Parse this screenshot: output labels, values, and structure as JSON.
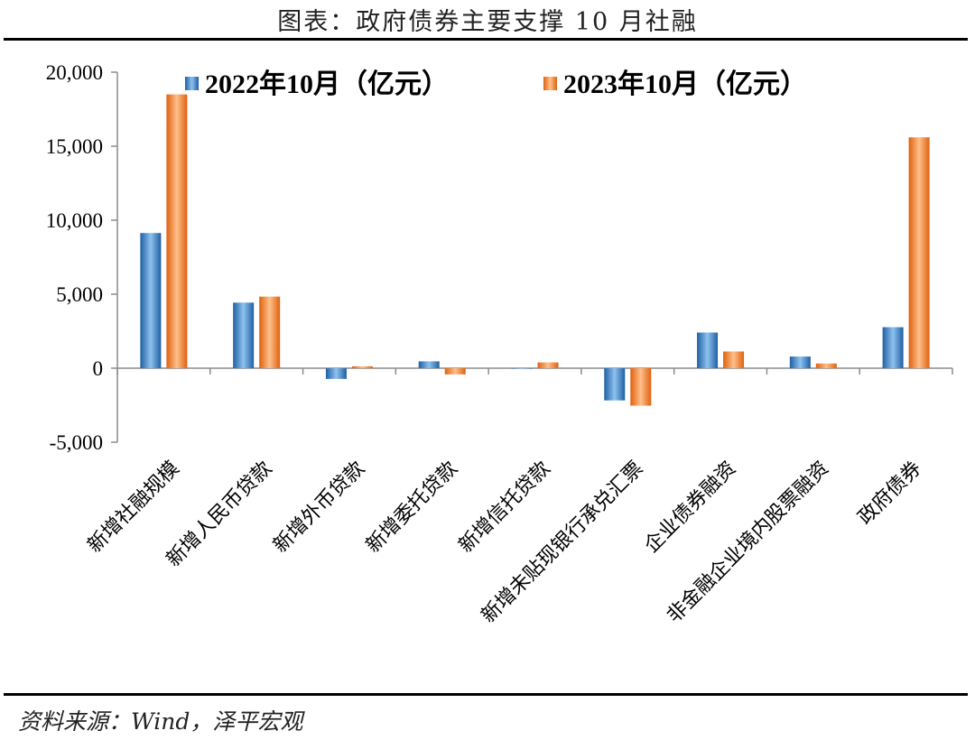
{
  "title": "图表：政府债券主要支撑 10 月社融",
  "source": "资料来源：Wind，泽平宏观",
  "chart_data": {
    "type": "bar",
    "categories": [
      "新增社融规模",
      "新增人民币贷款",
      "新增外币贷款",
      "新增委托贷款",
      "新增信托贷款",
      "新增未贴现银行承兑汇票",
      "企业债券融资",
      "非金融企业境内股票融资",
      "政府债券"
    ],
    "series": [
      {
        "name": "2022年10月（亿元）",
        "color": "#3a7fc4",
        "values": [
          9134,
          4431,
          -723,
          461,
          -2,
          -2177,
          2409,
          788,
          2770
        ]
      },
      {
        "name": "2023年10月（亿元）",
        "color": "#f07a2a",
        "values": [
          18500,
          4837,
          125,
          -419,
          389,
          -2530,
          1129,
          318,
          15600
        ]
      }
    ],
    "ylim": [
      -5000,
      20000
    ],
    "yticks": [
      -5000,
      0,
      5000,
      10000,
      15000,
      20000
    ],
    "ytick_labels": [
      "-5,000",
      "0",
      "5,000",
      "10,000",
      "15,000",
      "20,000"
    ],
    "grid": false,
    "legend": "top"
  }
}
